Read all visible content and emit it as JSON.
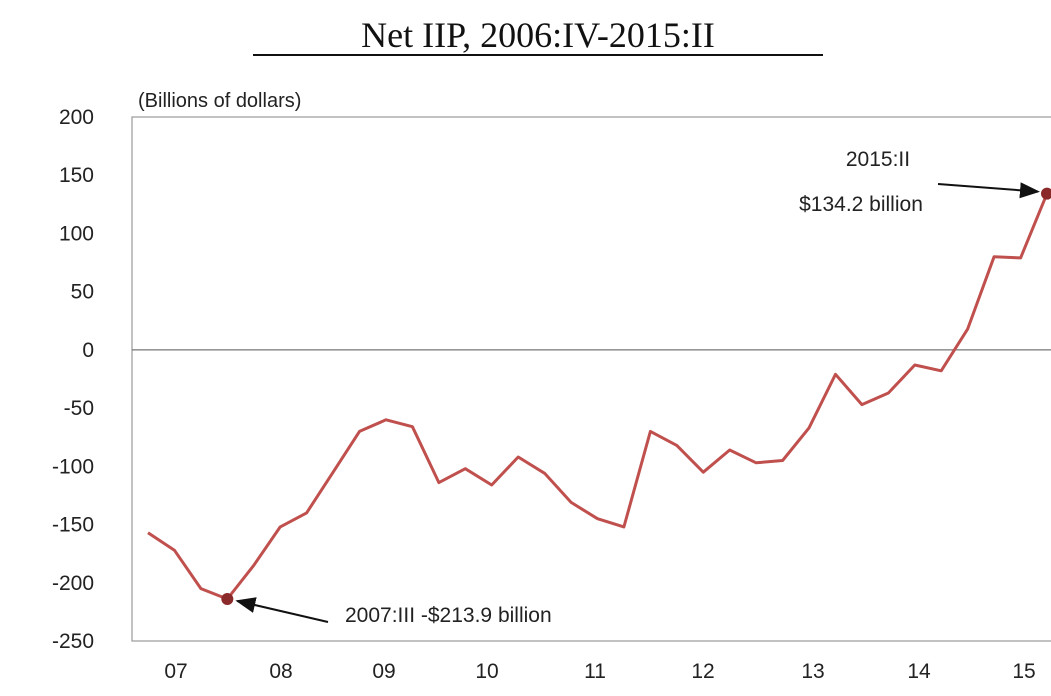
{
  "chart_data": {
    "type": "line",
    "title": "Net IIP, 2006:IV-2015:II",
    "ylabel": "(Billions of dollars)",
    "xlabel": "",
    "ylim": [
      -250,
      200
    ],
    "yticks": [
      200,
      150,
      100,
      50,
      0,
      -50,
      -100,
      -150,
      -200,
      -250
    ],
    "x_tick_labels": [
      "07",
      "08",
      "09",
      "10",
      "11",
      "12",
      "13",
      "14",
      "15"
    ],
    "grid": false,
    "line_color": "#c0504d",
    "point_color": "#8b2a2a",
    "series": [
      {
        "x": [
          "2006:IV",
          "2007:I",
          "2007:II",
          "2007:III",
          "2007:IV",
          "2008:I",
          "2008:II",
          "2008:III",
          "2008:IV",
          "2009:I",
          "2009:II",
          "2009:III",
          "2009:IV",
          "2010:I",
          "2010:II",
          "2010:III",
          "2010:IV",
          "2011:I",
          "2011:II",
          "2011:III",
          "2011:IV",
          "2012:I",
          "2012:II",
          "2012:III",
          "2012:IV",
          "2013:I",
          "2013:II",
          "2013:III",
          "2013:IV",
          "2014:I",
          "2014:II",
          "2014:III",
          "2014:IV",
          "2015:I",
          "2015:II"
        ],
        "values": [
          -157,
          -172,
          -205,
          -213.9,
          -185,
          -152,
          -140,
          -105,
          -70,
          -60,
          -66,
          -114,
          -102,
          -116,
          -92,
          -106,
          -131,
          -145,
          -152,
          -70,
          -82,
          -105,
          -86,
          -97,
          -95,
          -67,
          -21,
          -47,
          -37,
          -13,
          -18,
          18,
          80,
          79,
          134.2
        ]
      }
    ],
    "annotations": [
      {
        "text": "2007:III  -$213.9 billion",
        "x": "2007:III",
        "y": -213.9
      },
      {
        "text_line1": "2015:II",
        "text_line2": "$134.2 billion",
        "x": "2015:II",
        "y": 134.2
      }
    ]
  }
}
